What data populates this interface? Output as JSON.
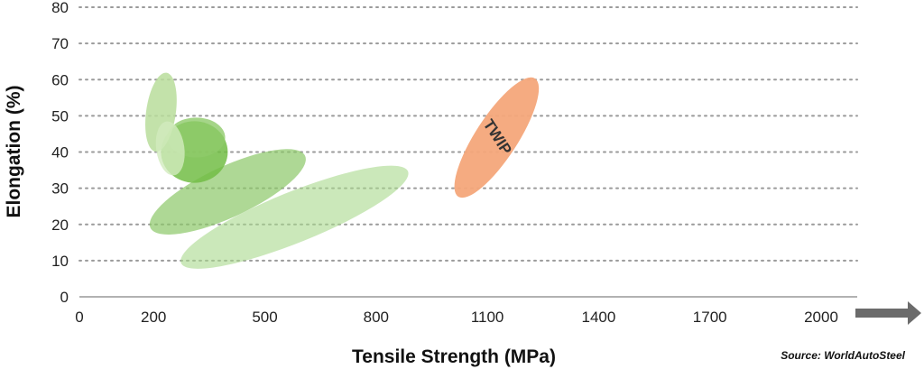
{
  "chart_data": {
    "type": "scatter",
    "subtype": "property-region-ellipses",
    "xlabel": "Tensile Strength (MPa)",
    "ylabel": "Elongation (%)",
    "xlim": [
      0,
      2000
    ],
    "ylim": [
      0,
      80
    ],
    "x_ticks": [
      0,
      200,
      500,
      800,
      1100,
      1400,
      1700,
      2000
    ],
    "y_ticks": [
      0,
      10,
      20,
      30,
      40,
      50,
      60,
      70,
      80
    ],
    "grid": "horizontal-dotted",
    "source": "Source: WorldAutoSteel",
    "regions": [
      {
        "label": "",
        "x_center": 580,
        "y_center": 22,
        "x_half": 330,
        "y_half": 7,
        "angle_deg": -22,
        "color": "#a9d88c",
        "opacity": 0.6
      },
      {
        "label": "",
        "x_center": 400,
        "y_center": 29,
        "x_half": 230,
        "y_half": 7,
        "angle_deg": -25,
        "color": "#8cc868",
        "opacity": 0.7
      },
      {
        "label": "",
        "x_center": 310,
        "y_center": 40,
        "x_half": 90,
        "y_half": 8.5,
        "angle_deg": 0,
        "color": "#72bd45",
        "opacity": 0.85
      },
      {
        "label": "",
        "x_center": 315,
        "y_center": 44,
        "x_half": 78,
        "y_half": 5.5,
        "angle_deg": 0,
        "color": "#8fcb6a",
        "opacity": 0.8
      },
      {
        "label": "",
        "x_center": 220,
        "y_center": 51,
        "x_half": 40,
        "y_half": 11,
        "angle_deg": 8,
        "color": "#b9dd9b",
        "opacity": 0.85
      },
      {
        "label": "",
        "x_center": 245,
        "y_center": 41,
        "x_half": 38,
        "y_half": 7.5,
        "angle_deg": -8,
        "color": "#d2ebbe",
        "opacity": 0.8
      },
      {
        "label": "TWIP",
        "x_center": 1125,
        "y_center": 44,
        "x_half": 190,
        "y_half": 5.8,
        "angle_deg": -57,
        "color": "#f4a67a",
        "opacity": 0.95
      }
    ]
  }
}
